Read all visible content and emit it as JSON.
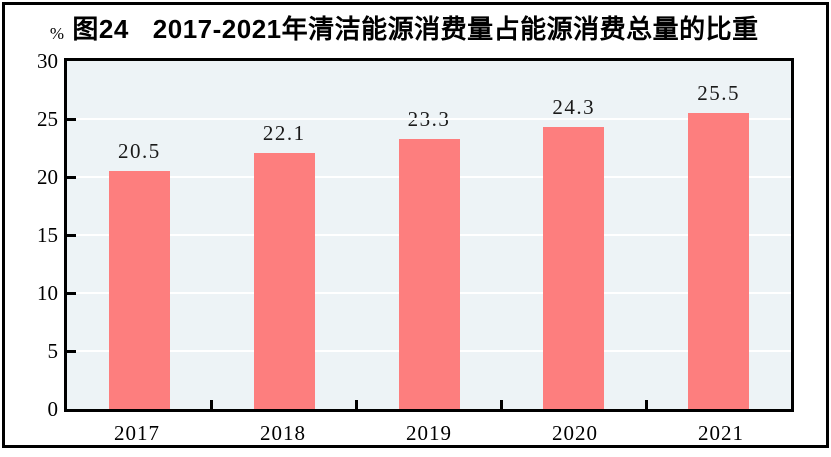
{
  "figure": {
    "fig_label": "图24",
    "title": "2017-2021年清洁能源消费量占能源消费总量的比重",
    "unit_label": "%"
  },
  "chart_data": {
    "type": "bar",
    "title": "图24 2017-2021年清洁能源消费量占能源消费总量的比重",
    "categories": [
      "2017",
      "2018",
      "2019",
      "2020",
      "2021"
    ],
    "values": [
      20.5,
      22.1,
      23.3,
      24.3,
      25.5
    ],
    "data_labels": [
      "20.5",
      "22.1",
      "23.3",
      "24.3",
      "25.5"
    ],
    "xlabel": "",
    "ylabel": "%",
    "ylim": [
      0,
      30
    ],
    "yticks": [
      0,
      5,
      10,
      15,
      20,
      25,
      30
    ],
    "ytick_labels": [
      "0",
      "5",
      "10",
      "15",
      "20",
      "25",
      "30"
    ],
    "grid": "horizontal major gridlines, white",
    "legend_position": "none",
    "colors": {
      "bar_fill": "#fd7e7e",
      "plot_background": "#edf3f6",
      "gridline": "#ffffff",
      "axis_frame": "#000000",
      "text": "#000000",
      "page_background": "#ffffff"
    }
  }
}
